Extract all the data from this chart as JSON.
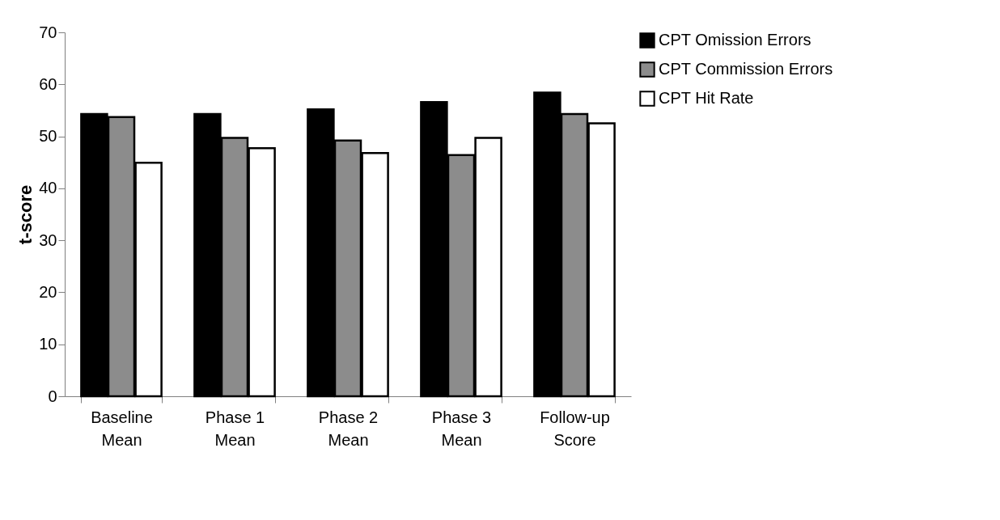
{
  "chart_data": {
    "type": "bar",
    "ylabel": "t-score",
    "categories": [
      "Baseline\nMean",
      "Phase 1\nMean",
      "Phase 2\nMean",
      "Phase 3\nMean",
      "Follow-up\nScore"
    ],
    "series": [
      {
        "name": "CPT Omission Errors",
        "color": "#000000",
        "values": [
          54.3,
          54.3,
          55.2,
          56.6,
          58.4
        ]
      },
      {
        "name": "CPT Commission Errors",
        "color": "#8c8c8c",
        "values": [
          53.7,
          49.7,
          49.2,
          46.4,
          54.3
        ]
      },
      {
        "name": "CPT Hit Rate",
        "color": "#ffffff",
        "values": [
          44.9,
          47.7,
          46.8,
          49.7,
          52.5
        ]
      }
    ],
    "ylim": [
      0,
      70
    ],
    "yticks": [
      0,
      10,
      20,
      30,
      40,
      50,
      60,
      70
    ],
    "grid": false,
    "legend": "right"
  }
}
